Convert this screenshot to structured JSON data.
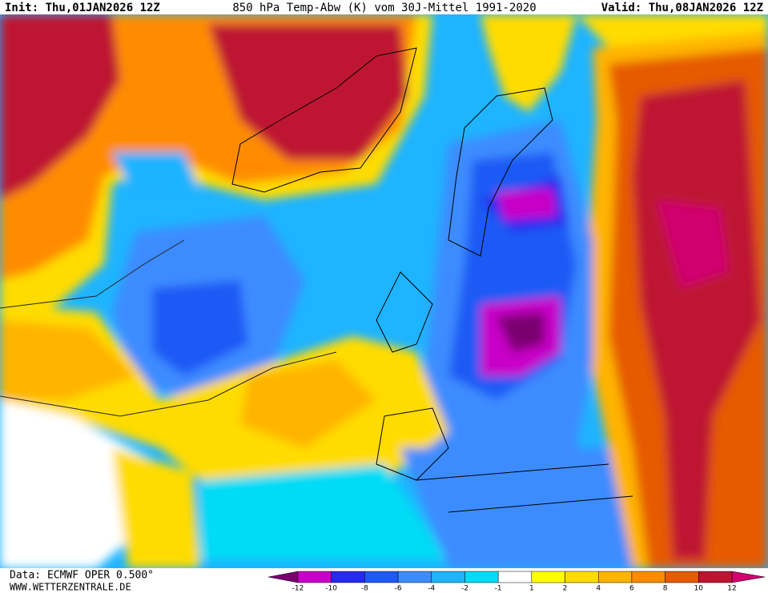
{
  "header": {
    "init": "Init: Thu,01JAN2026 12Z",
    "title": "850 hPa Temp-Abw (K) vom 30J-Mittel 1991-2020",
    "valid": "Valid: Thu,08JAN2026 12Z"
  },
  "footer": {
    "data": "Data: ECMWF OPER 0.500°",
    "url": "WWW.WETTERZENTRALE.DE"
  },
  "legend": {
    "labels": [
      "-12",
      "-10",
      "-8",
      "-6",
      "-4",
      "-2",
      "-1",
      "1",
      "2",
      "4",
      "6",
      "8",
      "10",
      "12"
    ],
    "colors": [
      "#7a0070",
      "#c800c8",
      "#2828f0",
      "#1e5af5",
      "#3c8cff",
      "#1eb4ff",
      "#00dcf5",
      "#ffffff",
      "#ffff00",
      "#ffdc00",
      "#ffb400",
      "#ff8c00",
      "#e65a00",
      "#be1432",
      "#d0006e"
    ]
  }
}
